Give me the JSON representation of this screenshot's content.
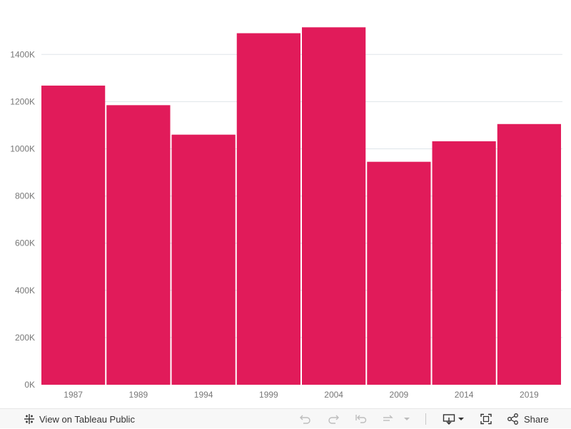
{
  "chart_data": {
    "type": "bar",
    "categories": [
      "1987",
      "1989",
      "1994",
      "1999",
      "2004",
      "2009",
      "2014",
      "2019"
    ],
    "values": [
      1268000,
      1185000,
      1060000,
      1490000,
      1515000,
      945000,
      1032000,
      1105000
    ],
    "title": "",
    "xlabel": "",
    "ylabel": "",
    "ylim": [
      0,
      1540000
    ],
    "yticks": [
      0,
      200000,
      400000,
      600000,
      800000,
      1000000,
      1200000,
      1400000
    ],
    "ytick_labels": [
      "0K",
      "200K",
      "400K",
      "600K",
      "800K",
      "1000K",
      "1200K",
      "1400K"
    ],
    "grid": true,
    "bar_color": "#e11b5a"
  },
  "toolbar": {
    "view_label": "View on Tableau Public",
    "share_label": "Share"
  }
}
